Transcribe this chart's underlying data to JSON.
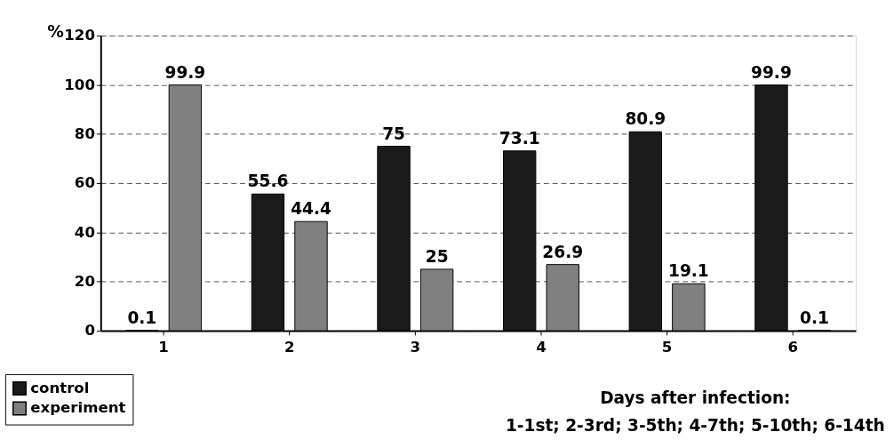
{
  "chart_data": {
    "type": "bar",
    "xlabel": "Days after infection:",
    "ylabel": "%",
    "annotations": [
      "1-1st; 2-3rd; 3-5th; 4-7th; 5-10th; 6-14th"
    ],
    "categories": [
      "1",
      "2",
      "3",
      "4",
      "5",
      "6"
    ],
    "series": [
      {
        "name": "control",
        "color": "#1a1a1a",
        "values": [
          0.1,
          55.6,
          75,
          73.1,
          80.9,
          99.9
        ]
      },
      {
        "name": "experiment",
        "color": "#808080",
        "values": [
          99.9,
          44.4,
          25,
          26.9,
          19.1,
          0.1
        ]
      }
    ],
    "ylim": [
      0,
      120
    ],
    "yticks": [
      0,
      20,
      40,
      60,
      80,
      100,
      120
    ],
    "grid": "y",
    "data_labels": true,
    "legend": "bottom left"
  }
}
